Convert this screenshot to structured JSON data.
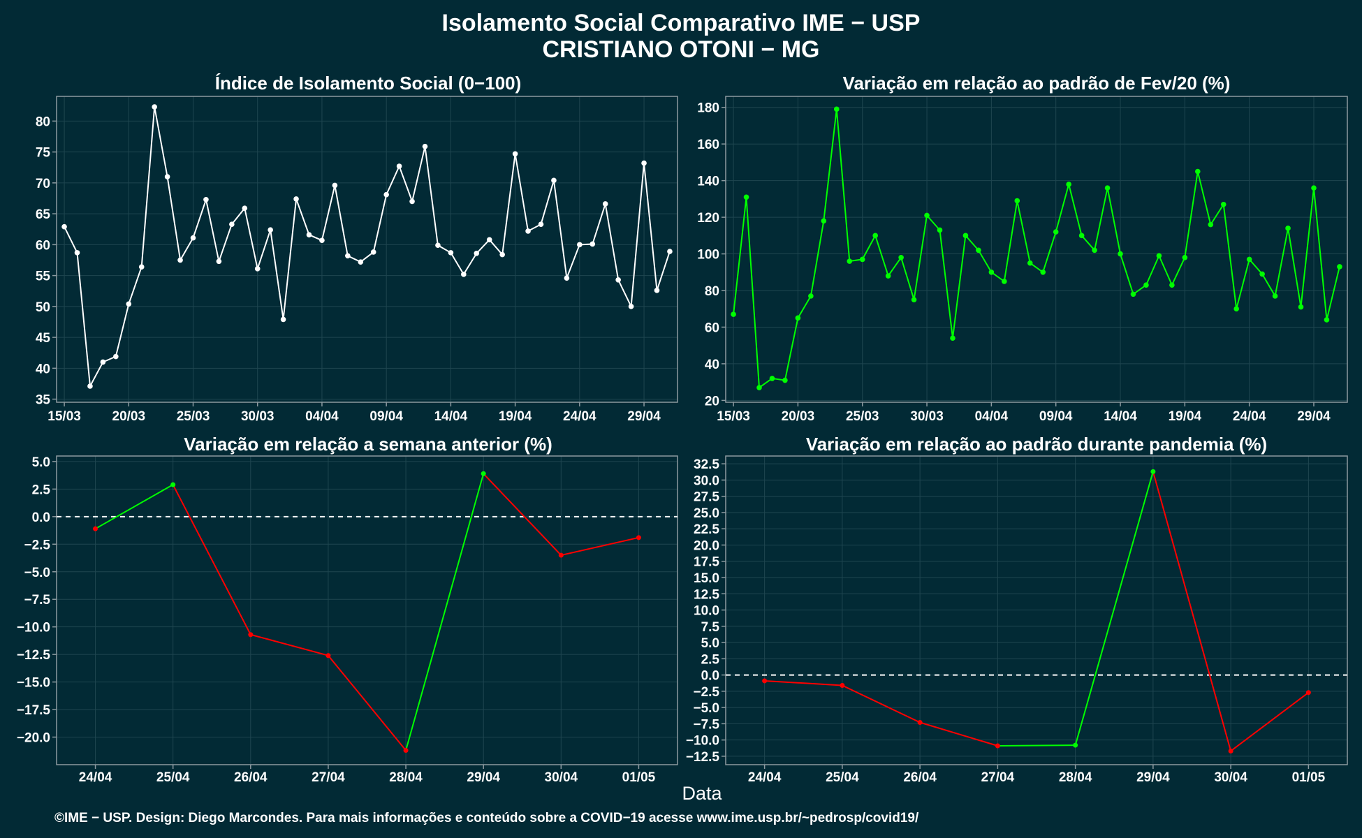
{
  "title_line1": "Isolamento Social Comparativo IME − USP",
  "title_line2": "CRISTIANO OTONI − MG",
  "xlabel": "Data",
  "caption": "©IME − USP. Design: Diego Marcondes. Para mais informações e conteúdo sobre a COVID−19 acesse www.ime.usp.br/~pedrosp/covid19/",
  "colors": {
    "background": "#022a35",
    "white_series": "#ffffff",
    "green": "#00ff00",
    "red": "#ff0000",
    "grid": "#1f4650",
    "border": "#8c9aa0"
  },
  "chart_data": [
    {
      "type": "line",
      "title": "Índice de Isolamento Social (0−100)",
      "xlabel": "",
      "ylabel": "",
      "x_start": "15/03",
      "x_ticks": [
        "15/03",
        "20/03",
        "25/03",
        "30/03",
        "04/04",
        "09/04",
        "14/04",
        "19/04",
        "24/04",
        "29/04"
      ],
      "ylim": [
        34.5,
        84
      ],
      "y_ticks": [
        "35",
        "40",
        "45",
        "50",
        "55",
        "60",
        "65",
        "70",
        "75",
        "80"
      ],
      "grid": true,
      "series": [
        {
          "color": "#ffffff",
          "values": [
            62.9,
            58.7,
            37.1,
            41.0,
            41.9,
            50.4,
            56.4,
            82.3,
            71.0,
            57.5,
            61.1,
            67.3,
            57.3,
            63.3,
            65.9,
            56.1,
            62.4,
            47.9,
            67.4,
            61.6,
            60.7,
            69.6,
            58.2,
            57.2,
            58.8,
            68.1,
            72.7,
            67.0,
            75.9,
            59.9,
            58.7,
            55.2,
            58.6,
            60.8,
            58.4,
            74.7,
            62.2,
            63.3,
            70.4,
            54.6,
            60.0,
            60.1,
            66.6,
            54.3,
            50.0,
            73.2,
            52.6,
            58.9
          ]
        }
      ]
    },
    {
      "type": "line",
      "title": "Variação em relação ao padrão de Fev/20 (%)",
      "xlabel": "",
      "ylabel": "",
      "x_start": "15/03",
      "x_ticks": [
        "15/03",
        "20/03",
        "25/03",
        "30/03",
        "04/04",
        "09/04",
        "14/04",
        "19/04",
        "24/04",
        "29/04"
      ],
      "ylim": [
        19,
        186
      ],
      "y_ticks": [
        "20",
        "40",
        "60",
        "80",
        "100",
        "120",
        "140",
        "160",
        "180"
      ],
      "grid": true,
      "series": [
        {
          "color": "#00ff00",
          "values": [
            67,
            131,
            27,
            32,
            31,
            65,
            77,
            118,
            179,
            96,
            97,
            110,
            88,
            98,
            75,
            121,
            113,
            54,
            110,
            102,
            90,
            85,
            129,
            95,
            90,
            112,
            138,
            110,
            102,
            136,
            100,
            78,
            83,
            99,
            83,
            98,
            145,
            116,
            127,
            70,
            97,
            89,
            77,
            114,
            71,
            136,
            64,
            93
          ]
        }
      ]
    },
    {
      "type": "line",
      "title": "Variação em relação a semana anterior (%)",
      "xlabel": "",
      "ylabel": "",
      "categories": [
        "24/04",
        "25/04",
        "26/04",
        "27/04",
        "28/04",
        "29/04",
        "30/04",
        "01/05"
      ],
      "ylim": [
        -22.5,
        5.5
      ],
      "y_ticks": [
        "5.0",
        "2.5",
        "0.0",
        "−2.5",
        "−5.0",
        "−7.5",
        "−10.0",
        "−12.5",
        "−15.0",
        "−17.5",
        "−20.0"
      ],
      "reference_line": 0,
      "grid": true,
      "series": [
        {
          "values": [
            -1.1,
            2.9,
            -10.7,
            -12.6,
            -21.2,
            3.9,
            -3.5,
            -1.9
          ],
          "segment_colors": [
            "#00ff00",
            "#ff0000",
            "#ff0000",
            "#ff0000",
            "#00ff00",
            "#ff0000",
            "#ff0000"
          ]
        }
      ]
    },
    {
      "type": "line",
      "title": "Variação em relação ao padrão durante pandemia (%)",
      "xlabel": "",
      "ylabel": "",
      "categories": [
        "24/04",
        "25/04",
        "26/04",
        "27/04",
        "28/04",
        "29/04",
        "30/04",
        "01/05"
      ],
      "ylim": [
        -13.8,
        33.7
      ],
      "y_ticks": [
        "32.5",
        "30.0",
        "27.5",
        "25.0",
        "22.5",
        "20.0",
        "17.5",
        "15.0",
        "12.5",
        "10.0",
        "7.5",
        "5.0",
        "2.5",
        "0.0",
        "−2.5",
        "−5.0",
        "−7.5",
        "−10.0",
        "−12.5"
      ],
      "reference_line": 0,
      "grid": true,
      "series": [
        {
          "values": [
            -0.9,
            -1.6,
            -7.3,
            -10.9,
            -10.8,
            31.3,
            -11.7,
            -2.7
          ],
          "segment_colors": [
            "#ff0000",
            "#ff0000",
            "#ff0000",
            "#00ff00",
            "#00ff00",
            "#ff0000",
            "#ff0000"
          ]
        }
      ]
    }
  ]
}
